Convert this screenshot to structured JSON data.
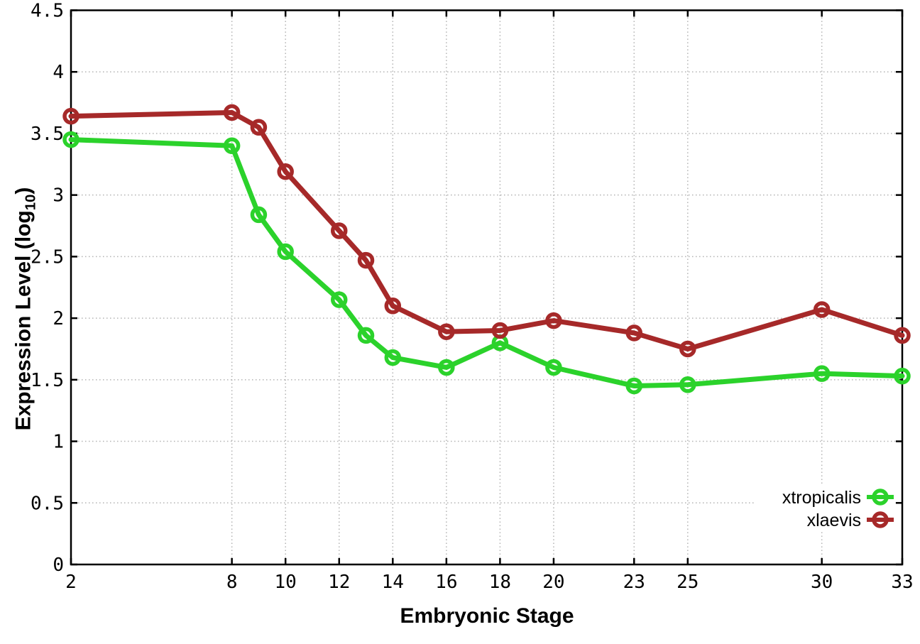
{
  "chart_data": {
    "type": "line",
    "title": "",
    "xlabel": "Embryonic Stage",
    "ylabel": "Expression Level (log10)",
    "ylabel_parts": {
      "prefix": "Expression Level (log",
      "subscript": "10",
      "suffix": ")"
    },
    "x": [
      2,
      8,
      9,
      10,
      12,
      13,
      14,
      16,
      18,
      20,
      23,
      25,
      30,
      33
    ],
    "series": [
      {
        "name": "xtropicalis",
        "color": "#2bd22b",
        "values": [
          3.45,
          3.4,
          2.84,
          2.54,
          2.15,
          1.86,
          1.68,
          1.6,
          1.8,
          1.6,
          1.45,
          1.46,
          1.55,
          1.53
        ]
      },
      {
        "name": "xlaevis",
        "color": "#a62929",
        "values": [
          3.64,
          3.67,
          3.55,
          3.19,
          2.71,
          2.47,
          2.1,
          1.89,
          1.9,
          1.98,
          1.88,
          1.75,
          2.07,
          1.86
        ]
      }
    ],
    "x_ticks": [
      2,
      8,
      10,
      12,
      14,
      16,
      18,
      20,
      23,
      25,
      30,
      33
    ],
    "y_ticks": [
      0,
      0.5,
      1,
      1.5,
      2,
      2.5,
      3,
      3.5,
      4,
      4.5
    ],
    "x_tick_labels": [
      "2",
      "8",
      "10",
      "12",
      "14",
      "16",
      "18",
      "20",
      "23",
      "25",
      "30",
      "33"
    ],
    "y_tick_labels": [
      "0",
      "0.5",
      "1",
      "1.5",
      "2",
      "2.5",
      "3",
      "3.5",
      "4",
      "4.5"
    ],
    "xlim": [
      2,
      33
    ],
    "ylim": [
      0,
      4.5
    ],
    "grid": true,
    "marker": "open-circle",
    "legend_position": "bottom-right",
    "legend_entries": [
      "xtropicalis",
      "xlaevis"
    ]
  },
  "colors": {
    "background": "#ffffff",
    "axis": "#000000",
    "grid": "#b3b3b3",
    "text": "#000000",
    "xtropicalis": "#2bd22b",
    "xlaevis": "#a62929"
  }
}
